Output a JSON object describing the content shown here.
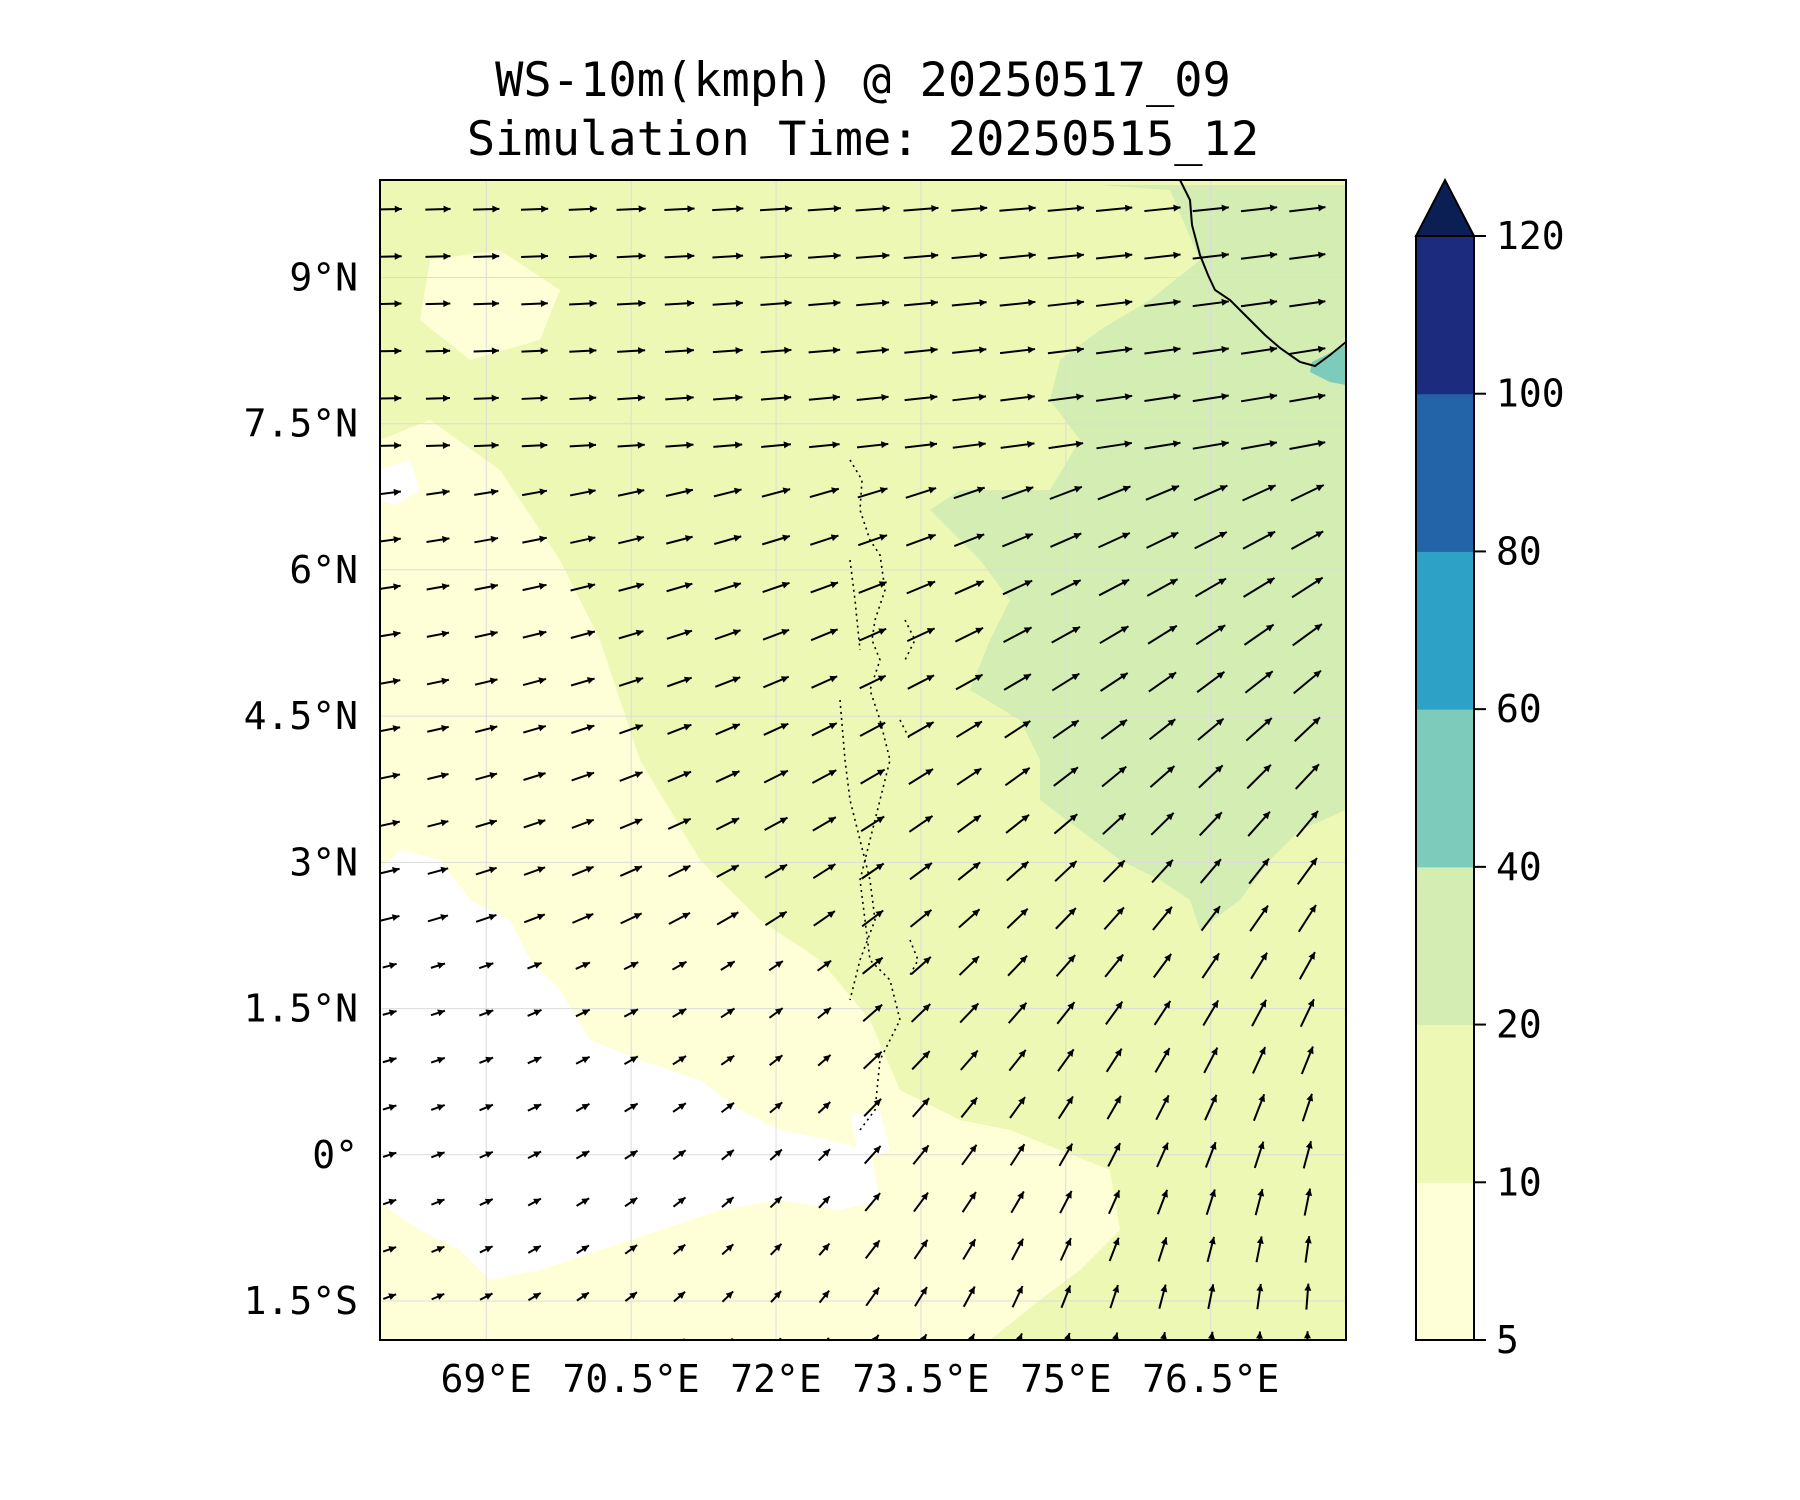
{
  "figure": {
    "title_line1": "WS-10m(kmph) @ 20250517_09",
    "title_line2": "Simulation Time: 20250515_12"
  },
  "map": {
    "lon_range": [
      67.9,
      77.9
    ],
    "lat_range": [
      -1.9,
      10.0
    ],
    "lon_ticks": [
      {
        "value": 69.0,
        "label": "69°E"
      },
      {
        "value": 70.5,
        "label": "70.5°E"
      },
      {
        "value": 72.0,
        "label": "72°E"
      },
      {
        "value": 73.5,
        "label": "73.5°E"
      },
      {
        "value": 75.0,
        "label": "75°E"
      },
      {
        "value": 76.5,
        "label": "76.5°E"
      }
    ],
    "lat_ticks": [
      {
        "value": 9.0,
        "label": "9°N"
      },
      {
        "value": 7.5,
        "label": "7.5°N"
      },
      {
        "value": 6.0,
        "label": "6°N"
      },
      {
        "value": 4.5,
        "label": "4.5°N"
      },
      {
        "value": 3.0,
        "label": "3°N"
      },
      {
        "value": 1.5,
        "label": "1.5°N"
      },
      {
        "value": 0.0,
        "label": "0°"
      },
      {
        "value": -1.5,
        "label": "1.5°S"
      }
    ],
    "gridlines": true
  },
  "colorbar": {
    "levels": [
      5,
      10,
      20,
      40,
      60,
      80,
      100,
      120
    ],
    "labels": [
      "5",
      "10",
      "20",
      "40",
      "60",
      "80",
      "100",
      "120"
    ],
    "colors": [
      "#feffd6",
      "#edf8b5",
      "#d3edb3",
      "#7ccbbb",
      "#2da2c6",
      "#2363a8",
      "#1c2b7e"
    ],
    "extend_color": "#0b1f55",
    "extend": "max"
  },
  "field_colors": {
    "below_min": "#ffffff",
    "band_5_10": "#feffd6",
    "band_10_20": "#edf8b5",
    "band_20_40": "#d3edb3",
    "band_40_60": "#7ccbbb"
  },
  "wind_field": {
    "description": "10 m wind vectors on a regular lon/lat grid",
    "grid_lon_start": 68.0,
    "grid_lon_step": 0.5,
    "grid_lon_count": 20,
    "grid_lat_start": 9.7,
    "grid_lat_step": -0.485,
    "grid_lat_count": 25,
    "direction_note": "westerly in north, veering to south-westerly mid-domain, southerly in the south-east"
  },
  "chart_data": {
    "type": "heatmap",
    "title": "WS-10m(kmph) @ 20250517_09",
    "subtitle": "Simulation Time: 20250515_12",
    "xlabel": "",
    "ylabel": "",
    "xlim": [
      67.9,
      77.9
    ],
    "ylim": [
      -1.9,
      10.0
    ],
    "colorbar_levels": [
      5,
      10,
      20,
      40,
      60,
      80,
      100,
      120
    ],
    "colorbar_extend": "max"
  }
}
